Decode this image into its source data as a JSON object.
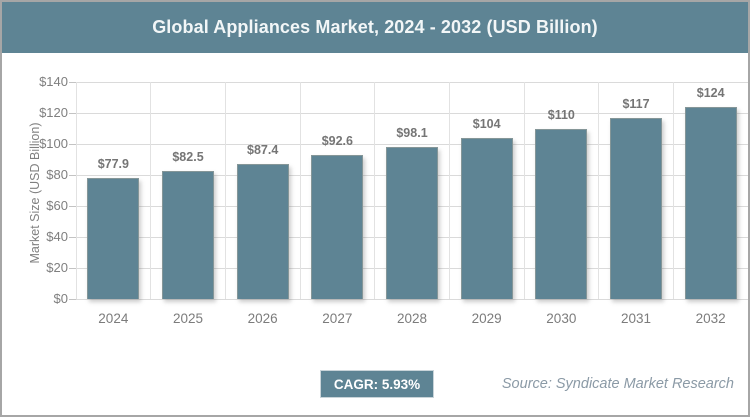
{
  "header": {
    "title": "Global Appliances Market, 2024 - 2032 (USD Billion)"
  },
  "chart_data": {
    "type": "bar",
    "title": "Global Appliances Market, 2024 - 2032 (USD Billion)",
    "categories": [
      "2024",
      "2025",
      "2026",
      "2027",
      "2028",
      "2029",
      "2030",
      "2031",
      "2032"
    ],
    "values": [
      77.9,
      82.5,
      87.4,
      92.6,
      98.1,
      104,
      110,
      117,
      124
    ],
    "bar_labels": [
      "$77.9",
      "$82.5",
      "$87.4",
      "$92.6",
      "$98.1",
      "$104",
      "$110",
      "$117",
      "$124"
    ],
    "xlabel": "",
    "ylabel": "Market Size (USD Billion)",
    "ylim": [
      0,
      140
    ],
    "ytick_step": 20,
    "ytick_labels": [
      "$0",
      "$20",
      "$40",
      "$60",
      "$80",
      "$100",
      "$120",
      "$140"
    ],
    "grid": true,
    "legend": false
  },
  "footer": {
    "cagr_badge": "CAGR: 5.93%",
    "source": "Source: Syndicate Market Research"
  },
  "colors": {
    "accent": "#5e8494",
    "grid_line": "#dadada",
    "axis_text": "#7f7f7f",
    "bar_label_text": "#757575",
    "frame_border": "#a6a6a6",
    "source_text": "#8b9aa6",
    "title_text": "#f2f6f7"
  }
}
